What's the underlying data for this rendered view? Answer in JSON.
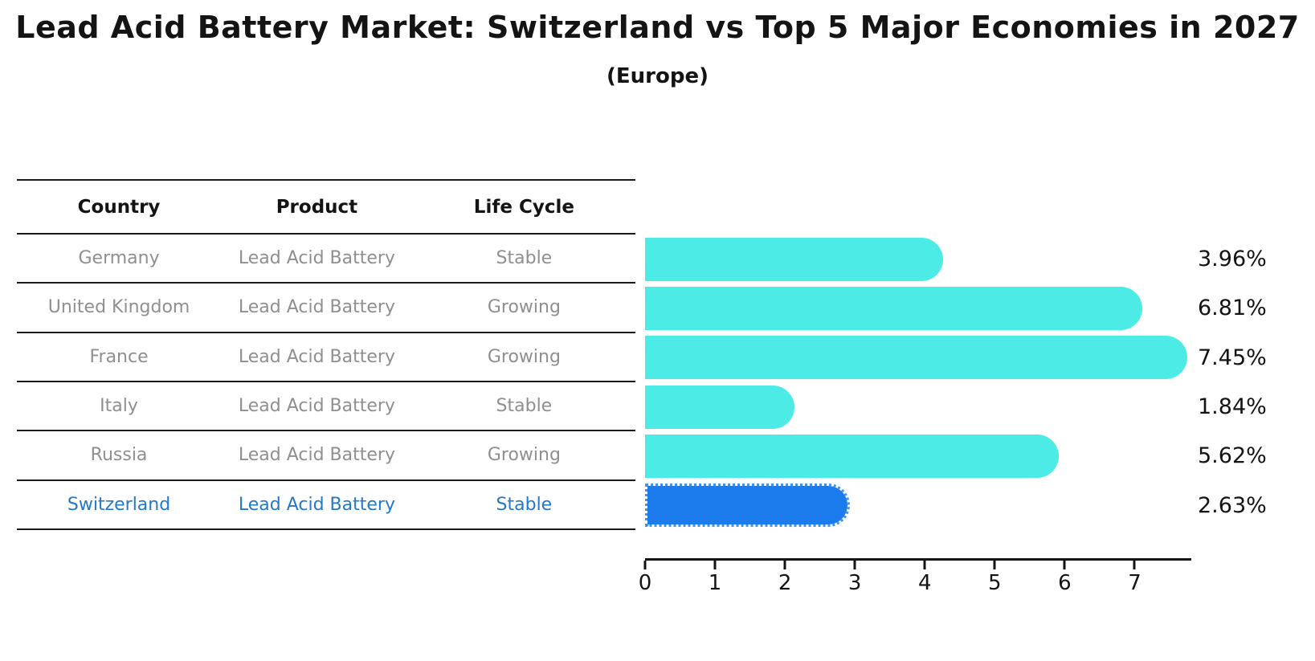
{
  "title": "Lead Acid Battery Market: Switzerland vs Top 5 Major Economies in 2027",
  "subtitle": "(Europe)",
  "table": {
    "headers": [
      "Country",
      "Product",
      "Life Cycle"
    ],
    "rows": [
      {
        "country": "Germany",
        "product": "Lead Acid Battery",
        "life_cycle": "Stable",
        "highlight": false
      },
      {
        "country": "United Kingdom",
        "product": "Lead Acid Battery",
        "life_cycle": "Growing",
        "highlight": false
      },
      {
        "country": "France",
        "product": "Lead Acid Battery",
        "life_cycle": "Growing",
        "highlight": false
      },
      {
        "country": "Italy",
        "product": "Lead Acid Battery",
        "life_cycle": "Stable",
        "highlight": false
      },
      {
        "country": "Russia",
        "product": "Lead Acid Battery",
        "life_cycle": "Growing",
        "highlight": false
      },
      {
        "country": "Switzerland",
        "product": "Lead Acid Battery",
        "life_cycle": "Stable",
        "highlight": true
      }
    ]
  },
  "chart_data": {
    "type": "bar",
    "orientation": "horizontal",
    "title": "Lead Acid Battery Market: Switzerland vs Top 5 Major Economies in 2027",
    "subtitle": "(Europe)",
    "categories": [
      "Germany",
      "United Kingdom",
      "France",
      "Italy",
      "Russia",
      "Switzerland"
    ],
    "values": [
      3.96,
      6.81,
      7.45,
      1.84,
      5.62,
      2.63
    ],
    "value_labels": [
      "3.96%",
      "6.81%",
      "7.45%",
      "1.84%",
      "5.62%",
      "2.63%"
    ],
    "unit": "%",
    "x_ticks": [
      0,
      1,
      2,
      3,
      4,
      5,
      6,
      7
    ],
    "xlim": [
      0,
      7.81
    ],
    "grid": false,
    "legend": false,
    "highlight_index": 5,
    "bar_color": "#4DEBE6",
    "highlight_bar_color": "#1C7CED"
  },
  "colors": {
    "background": "#FFFFFF",
    "title_text": "#141414",
    "table_line": "#1A1A1A",
    "table_header_text": "#141414",
    "table_row_text": "#8F8F8F",
    "highlight_row_text": "#2478CB",
    "bar_cyan": "#4DEBE6",
    "bar_blue": "#1C7CED",
    "value_label_text": "#141414",
    "axis": "#141414"
  }
}
